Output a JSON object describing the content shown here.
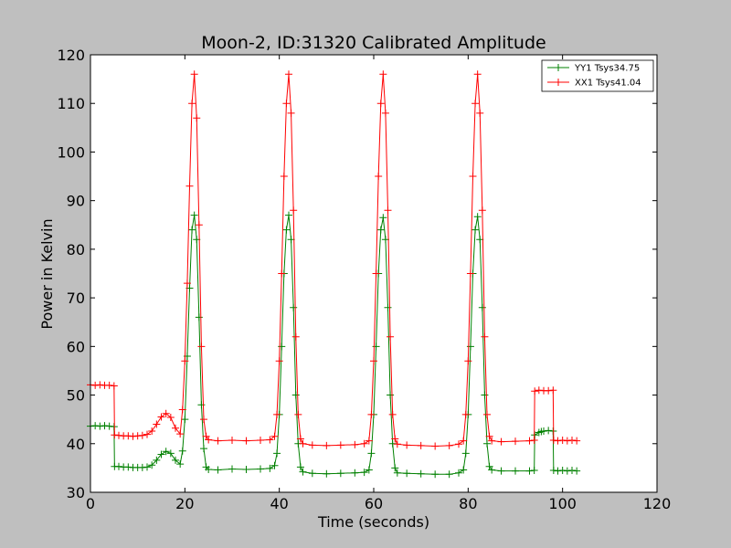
{
  "chart_data": {
    "type": "line",
    "title": "Moon-2, ID:31320 Calibrated Amplitude",
    "xlabel": "Time (seconds)",
    "ylabel": "Power in Kelvin",
    "xlim": [
      0,
      120
    ],
    "ylim": [
      30,
      120
    ],
    "xticks": [
      0,
      20,
      40,
      60,
      80,
      100,
      120
    ],
    "yticks": [
      30,
      40,
      50,
      60,
      70,
      80,
      90,
      100,
      110,
      120
    ],
    "legend_position": "top-right",
    "grid": false,
    "series": [
      {
        "name": "YY1 Tsys34.75",
        "color": "#008000",
        "marker": "+",
        "points": [
          [
            0,
            43.6
          ],
          [
            1,
            43.7
          ],
          [
            2,
            43.6
          ],
          [
            3,
            43.7
          ],
          [
            4,
            43.6
          ],
          [
            5,
            43.5
          ],
          [
            5.1,
            35.3
          ],
          [
            6,
            35.3
          ],
          [
            7,
            35.2
          ],
          [
            8,
            35.2
          ],
          [
            9,
            35.1
          ],
          [
            10,
            35.1
          ],
          [
            11,
            35.1
          ],
          [
            12,
            35.2
          ],
          [
            13,
            35.6
          ],
          [
            14,
            36.6
          ],
          [
            15,
            37.8
          ],
          [
            16,
            38.4
          ],
          [
            17,
            38.0
          ],
          [
            18,
            36.6
          ],
          [
            19,
            35.8
          ],
          [
            19.5,
            38.5
          ],
          [
            20,
            45
          ],
          [
            20.5,
            58
          ],
          [
            21,
            72
          ],
          [
            21.5,
            84
          ],
          [
            22,
            87
          ],
          [
            22.5,
            82
          ],
          [
            23,
            66
          ],
          [
            23.5,
            48
          ],
          [
            24,
            39
          ],
          [
            24.5,
            35.2
          ],
          [
            25,
            34.7
          ],
          [
            27,
            34.6
          ],
          [
            30,
            34.8
          ],
          [
            33,
            34.7
          ],
          [
            36,
            34.8
          ],
          [
            38,
            34.9
          ],
          [
            39,
            35.5
          ],
          [
            39.5,
            38
          ],
          [
            40,
            46
          ],
          [
            40.5,
            60
          ],
          [
            41,
            75
          ],
          [
            41.5,
            84
          ],
          [
            42,
            87
          ],
          [
            42.5,
            82
          ],
          [
            43,
            68
          ],
          [
            43.5,
            50
          ],
          [
            44,
            40
          ],
          [
            44.5,
            35.2
          ],
          [
            45,
            34.2
          ],
          [
            47,
            33.9
          ],
          [
            50,
            33.8
          ],
          [
            53,
            33.9
          ],
          [
            56,
            34.0
          ],
          [
            58,
            34.1
          ],
          [
            59,
            34.6
          ],
          [
            59.5,
            38
          ],
          [
            60,
            46
          ],
          [
            60.5,
            60
          ],
          [
            61,
            75
          ],
          [
            61.5,
            84
          ],
          [
            62,
            86.5
          ],
          [
            62.5,
            82
          ],
          [
            63,
            68
          ],
          [
            63.5,
            50
          ],
          [
            64,
            40
          ],
          [
            64.5,
            35
          ],
          [
            65,
            34.0
          ],
          [
            67,
            33.9
          ],
          [
            70,
            33.8
          ],
          [
            73,
            33.7
          ],
          [
            76,
            33.7
          ],
          [
            78,
            34.0
          ],
          [
            79,
            34.6
          ],
          [
            79.5,
            38
          ],
          [
            80,
            46
          ],
          [
            80.5,
            60
          ],
          [
            81,
            75
          ],
          [
            81.5,
            84
          ],
          [
            82,
            86.7
          ],
          [
            82.5,
            82
          ],
          [
            83,
            68
          ],
          [
            83.5,
            50
          ],
          [
            84,
            40
          ],
          [
            84.5,
            35.3
          ],
          [
            85,
            34.6
          ],
          [
            87,
            34.4
          ],
          [
            90,
            34.4
          ],
          [
            93,
            34.4
          ],
          [
            94,
            34.5
          ],
          [
            94.1,
            41.8
          ],
          [
            95,
            42.3
          ],
          [
            95.5,
            42.5
          ],
          [
            96,
            42.6
          ],
          [
            97,
            42.7
          ],
          [
            98,
            42.6
          ],
          [
            98.1,
            34.5
          ],
          [
            99,
            34.4
          ],
          [
            100,
            34.5
          ],
          [
            101,
            34.4
          ],
          [
            102,
            34.5
          ],
          [
            103,
            34.4
          ]
        ]
      },
      {
        "name": "XX1 Tsys41.04",
        "color": "#ff0000",
        "marker": "+",
        "points": [
          [
            0,
            52.1
          ],
          [
            1,
            52.0
          ],
          [
            2,
            52.1
          ],
          [
            3,
            52.0
          ],
          [
            4,
            52.0
          ],
          [
            5,
            51.9
          ],
          [
            5.1,
            41.8
          ],
          [
            6,
            41.7
          ],
          [
            7,
            41.6
          ],
          [
            8,
            41.6
          ],
          [
            9,
            41.5
          ],
          [
            10,
            41.6
          ],
          [
            11,
            41.7
          ],
          [
            12,
            41.9
          ],
          [
            13,
            42.6
          ],
          [
            14,
            44.0
          ],
          [
            15,
            45.5
          ],
          [
            16,
            46.2
          ],
          [
            17,
            45.4
          ],
          [
            18,
            43.2
          ],
          [
            19,
            42.0
          ],
          [
            19.5,
            47
          ],
          [
            20,
            57
          ],
          [
            20.5,
            73
          ],
          [
            21,
            93
          ],
          [
            21.5,
            110
          ],
          [
            22,
            116
          ],
          [
            22.5,
            107
          ],
          [
            23,
            85
          ],
          [
            23.5,
            60
          ],
          [
            24,
            45
          ],
          [
            24.5,
            41.5
          ],
          [
            25,
            40.8
          ],
          [
            27,
            40.6
          ],
          [
            30,
            40.7
          ],
          [
            33,
            40.6
          ],
          [
            36,
            40.7
          ],
          [
            38,
            40.8
          ],
          [
            39,
            41.5
          ],
          [
            39.5,
            46
          ],
          [
            40,
            57
          ],
          [
            40.5,
            75
          ],
          [
            41,
            95
          ],
          [
            41.5,
            110
          ],
          [
            42,
            116
          ],
          [
            42.5,
            108
          ],
          [
            43,
            88
          ],
          [
            43.5,
            62
          ],
          [
            44,
            46
          ],
          [
            44.5,
            41
          ],
          [
            45,
            40.0
          ],
          [
            47,
            39.7
          ],
          [
            50,
            39.6
          ],
          [
            53,
            39.7
          ],
          [
            56,
            39.8
          ],
          [
            58,
            40.0
          ],
          [
            59,
            40.6
          ],
          [
            59.5,
            46
          ],
          [
            60,
            57
          ],
          [
            60.5,
            75
          ],
          [
            61,
            95
          ],
          [
            61.5,
            110
          ],
          [
            62,
            116
          ],
          [
            62.5,
            108
          ],
          [
            63,
            88
          ],
          [
            63.5,
            62
          ],
          [
            64,
            46
          ],
          [
            64.5,
            41
          ],
          [
            65,
            39.9
          ],
          [
            67,
            39.7
          ],
          [
            70,
            39.6
          ],
          [
            73,
            39.5
          ],
          [
            76,
            39.6
          ],
          [
            78,
            39.9
          ],
          [
            79,
            40.6
          ],
          [
            79.5,
            46
          ],
          [
            80,
            57
          ],
          [
            80.5,
            75
          ],
          [
            81,
            95
          ],
          [
            81.5,
            110
          ],
          [
            82,
            116
          ],
          [
            82.5,
            108
          ],
          [
            83,
            88
          ],
          [
            83.5,
            62
          ],
          [
            84,
            46
          ],
          [
            84.5,
            41.5
          ],
          [
            85,
            40.6
          ],
          [
            87,
            40.4
          ],
          [
            90,
            40.5
          ],
          [
            93,
            40.6
          ],
          [
            94,
            40.7
          ],
          [
            94.1,
            50.8
          ],
          [
            95,
            51.0
          ],
          [
            96,
            50.9
          ],
          [
            97,
            50.9
          ],
          [
            98,
            51.0
          ],
          [
            98.1,
            40.7
          ],
          [
            99,
            40.6
          ],
          [
            100,
            40.7
          ],
          [
            101,
            40.6
          ],
          [
            102,
            40.7
          ],
          [
            103,
            40.6
          ]
        ]
      }
    ]
  }
}
